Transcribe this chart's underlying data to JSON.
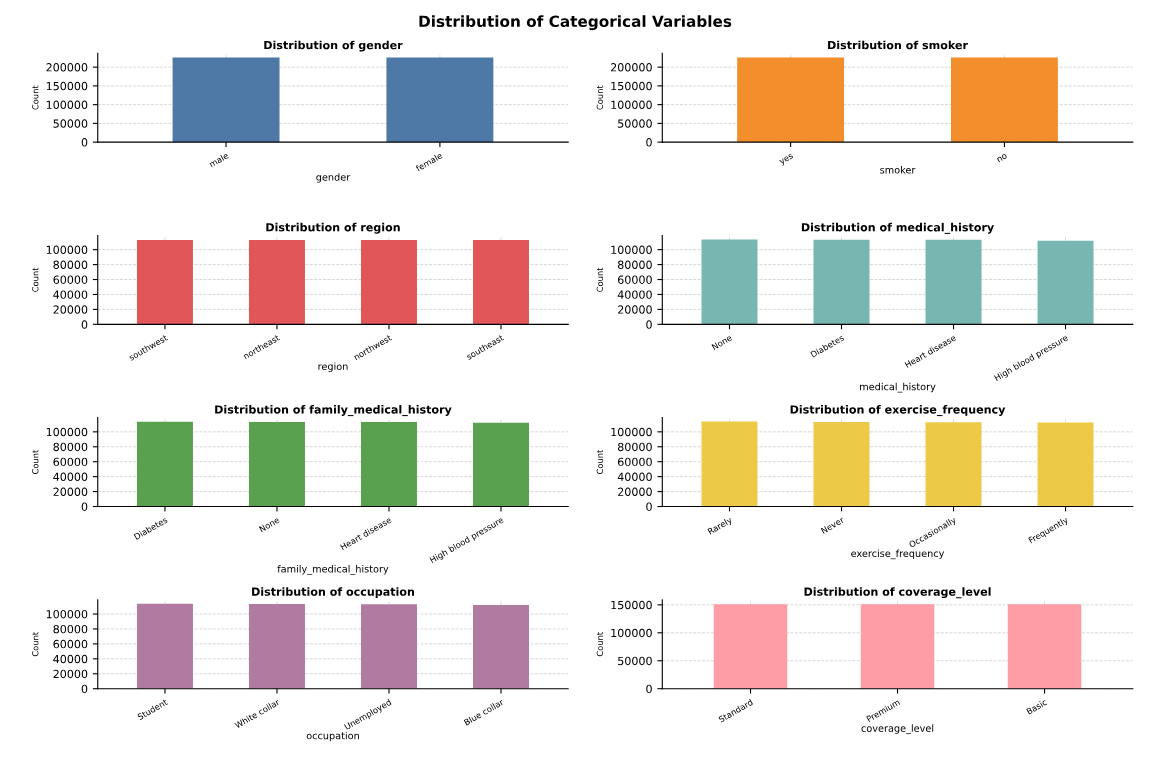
{
  "chart_data": [
    {
      "type": "bar",
      "annotations": [
        "Distribution of Categorical Variables"
      ],
      "title": "Distribution of gender",
      "xlabel": "gender",
      "ylabel": "Count",
      "categories": [
        "male",
        "female"
      ],
      "values": [
        226000,
        226000
      ],
      "color": "#4e79a7",
      "ylim": [
        0,
        237000
      ],
      "yticks": [
        0,
        50000,
        100000,
        150000,
        200000
      ],
      "grid": true
    },
    {
      "type": "bar",
      "title": "Distribution of smoker",
      "xlabel": "smoker",
      "ylabel": "Count",
      "categories": [
        "yes",
        "no"
      ],
      "values": [
        226000,
        226000
      ],
      "color": "#f28e2b",
      "ylim": [
        0,
        237000
      ],
      "yticks": [
        0,
        50000,
        100000,
        150000,
        200000
      ],
      "grid": true
    },
    {
      "type": "bar",
      "title": "Distribution of region",
      "xlabel": "region",
      "ylabel": "Count",
      "categories": [
        "southwest",
        "northeast",
        "northwest",
        "southeast"
      ],
      "values": [
        113000,
        113000,
        113000,
        113000
      ],
      "color": "#e15759",
      "ylim": [
        0,
        119000
      ],
      "yticks": [
        0,
        20000,
        40000,
        60000,
        80000,
        100000
      ],
      "grid": true
    },
    {
      "type": "bar",
      "title": "Distribution of medical_history",
      "xlabel": "medical_history",
      "ylabel": "Count",
      "categories": [
        "None",
        "Diabetes",
        "Heart disease",
        "High blood pressure"
      ],
      "values": [
        113500,
        113300,
        113200,
        112000
      ],
      "color": "#76b7b2",
      "ylim": [
        0,
        119000
      ],
      "yticks": [
        0,
        20000,
        40000,
        60000,
        80000,
        100000
      ],
      "grid": true
    },
    {
      "type": "bar",
      "title": "Distribution of family_medical_history",
      "xlabel": "family_medical_history",
      "ylabel": "Count",
      "categories": [
        "Diabetes",
        "None",
        "Heart disease",
        "High blood pressure"
      ],
      "values": [
        113500,
        113200,
        113200,
        112200
      ],
      "color": "#59a14f",
      "ylim": [
        0,
        119000
      ],
      "yticks": [
        0,
        20000,
        40000,
        60000,
        80000,
        100000
      ],
      "grid": true
    },
    {
      "type": "bar",
      "title": "Distribution of exercise_frequency",
      "xlabel": "exercise_frequency",
      "ylabel": "Count",
      "categories": [
        "Rarely",
        "Never",
        "Occasionally",
        "Frequently"
      ],
      "values": [
        113800,
        113200,
        112800,
        112500
      ],
      "color": "#edc948",
      "ylim": [
        0,
        119000
      ],
      "yticks": [
        0,
        20000,
        40000,
        60000,
        80000,
        100000
      ],
      "grid": true
    },
    {
      "type": "bar",
      "title": "Distribution of occupation",
      "xlabel": "occupation",
      "ylabel": "Count",
      "categories": [
        "Student",
        "White collar",
        "Unemployed",
        "Blue collar"
      ],
      "values": [
        113800,
        113300,
        113200,
        112000
      ],
      "color": "#b07aa1",
      "ylim": [
        0,
        119000
      ],
      "yticks": [
        0,
        20000,
        40000,
        60000,
        80000,
        100000
      ],
      "grid": true
    },
    {
      "type": "bar",
      "title": "Distribution of coverage_level",
      "xlabel": "coverage_level",
      "ylabel": "Count",
      "categories": [
        "Standard",
        "Premium",
        "Basic"
      ],
      "values": [
        151000,
        151000,
        151000
      ],
      "color": "#ff9da7",
      "ylim": [
        0,
        159000
      ],
      "yticks": [
        0,
        50000,
        100000,
        150000
      ],
      "grid": true
    }
  ]
}
